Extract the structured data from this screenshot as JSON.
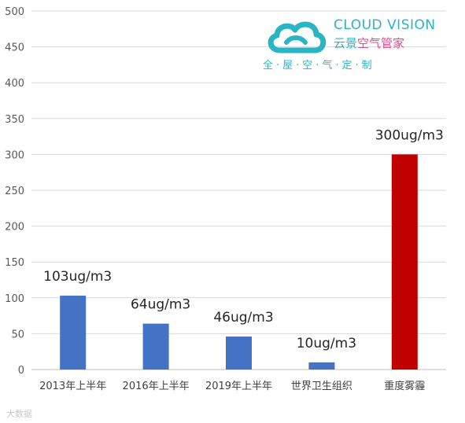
{
  "chart_data": {
    "type": "bar",
    "categories": [
      "2013年上半年",
      "2016年上半年",
      "2019年上半年",
      "世界卫生组织",
      "重度雾霾"
    ],
    "values": [
      103,
      64,
      46,
      10,
      300
    ],
    "data_labels": [
      "103ug/m3",
      "64ug/m3",
      "46ug/m3",
      "10ug/m3",
      "300ug/m3"
    ],
    "bar_colors": [
      "#4472c4",
      "#4472c4",
      "#4472c4",
      "#4472c4",
      "#c00000"
    ],
    "ylim": [
      0,
      500
    ],
    "yticks": [
      0,
      50,
      100,
      150,
      200,
      250,
      300,
      350,
      400,
      450,
      500
    ],
    "grid": true,
    "title": "",
    "xlabel": "",
    "ylabel": ""
  },
  "logo": {
    "en": "CLOUD VISION",
    "cn_a": "云景",
    "cn_b": "空气管家",
    "slogan": "全·屋·空·气·定·制",
    "color": "#2bb5c4",
    "accent": "#e24b8c"
  },
  "watermark": "大数据"
}
